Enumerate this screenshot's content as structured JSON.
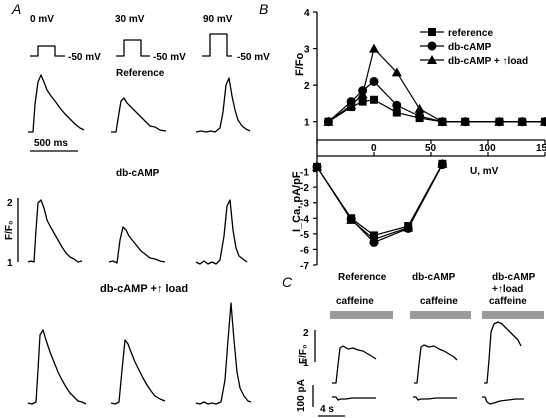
{
  "panels": {
    "a": "A",
    "b": "B",
    "c": "C"
  },
  "panel_a": {
    "voltages": [
      "0 mV",
      "30 mV",
      "90 mV"
    ],
    "holding": "-50 mV",
    "row_labels": [
      "Reference",
      "db-cAMP",
      "db-cAMP +↑ load"
    ],
    "time_scale": "500 ms",
    "y_scale_label": "F/F₀",
    "y_scale_ticks": [
      "2",
      "1"
    ]
  },
  "panel_c": {
    "columns": [
      "Reference",
      "db-cAMP",
      "db-cAMP\n+↑load"
    ],
    "stimulus": "caffeine",
    "y_scale_label": "F/F₀",
    "y_scale_ticks": [
      "2",
      "1"
    ],
    "current_scale": "100 pA",
    "time_scale": "4 s"
  },
  "chart_data": [
    {
      "type": "line",
      "title": "",
      "ylabel": "F/Fo",
      "xlabel": "",
      "xlim": [
        -50,
        150
      ],
      "ylim": [
        0.5,
        4
      ],
      "yticks": [
        1,
        2,
        3,
        4
      ],
      "legend": "top-right",
      "series": [
        {
          "name": "reference",
          "marker": "square",
          "x": [
            -40,
            -20,
            -10,
            0,
            20,
            40,
            60,
            80,
            110,
            130,
            150
          ],
          "y": [
            1.0,
            1.4,
            1.55,
            1.6,
            1.25,
            1.1,
            1.0,
            1.0,
            1.0,
            1.0,
            1.0
          ]
        },
        {
          "name": "db-cAMP",
          "marker": "circle",
          "x": [
            -40,
            -20,
            -10,
            0,
            20,
            40,
            60,
            80,
            110,
            130,
            150
          ],
          "y": [
            1.0,
            1.55,
            1.85,
            2.1,
            1.45,
            1.15,
            1.0,
            1.0,
            1.0,
            1.0,
            1.0
          ]
        },
        {
          "name": "db-cAMP + ↑load",
          "marker": "triangle",
          "x": [
            -40,
            -20,
            -10,
            0,
            20,
            40,
            60,
            80,
            110,
            130,
            150
          ],
          "y": [
            1.0,
            1.45,
            1.75,
            3.0,
            2.35,
            1.35,
            1.0,
            1.0,
            1.0,
            1.0,
            1.0
          ]
        }
      ]
    },
    {
      "type": "line",
      "title": "",
      "ylabel": "I_Ca, pA/pF",
      "xlabel": "U, mV",
      "xlim": [
        -50,
        150
      ],
      "xticks": [
        0,
        50,
        100,
        150
      ],
      "ylim": [
        -7,
        0
      ],
      "yticks": [
        -1,
        -2,
        -3,
        -4,
        -5,
        -6,
        -7
      ],
      "series": [
        {
          "name": "reference",
          "marker": "square",
          "x": [
            -50,
            -20,
            0,
            30,
            60
          ],
          "y": [
            -0.7,
            -4.0,
            -5.1,
            -4.5,
            -0.5
          ]
        },
        {
          "name": "db-cAMP",
          "marker": "circle",
          "x": [
            -50,
            -20,
            0,
            30,
            60
          ],
          "y": [
            -0.7,
            -4.05,
            -5.55,
            -4.65,
            -0.55
          ]
        },
        {
          "name": "db-cAMP + ↑load",
          "marker": "triangle",
          "x": [
            -50,
            -20,
            0,
            30,
            60
          ],
          "y": [
            -0.7,
            -4.1,
            -5.35,
            -4.6,
            -0.5
          ]
        }
      ]
    }
  ]
}
